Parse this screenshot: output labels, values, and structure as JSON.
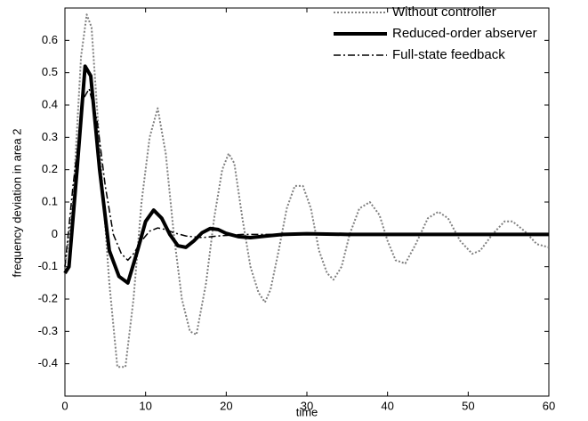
{
  "chart_data": {
    "type": "line",
    "x_label": "time",
    "y_label": "frequency deviation in area 2",
    "xlim": [
      0,
      60
    ],
    "xticks": [
      0,
      10,
      20,
      30,
      40,
      50,
      60
    ],
    "ylim": [
      -0.5,
      0.7
    ],
    "yticks": [
      -0.4,
      -0.3,
      -0.2,
      -0.1,
      0,
      0.1,
      0.2,
      0.3,
      0.4,
      0.5,
      0.6
    ],
    "grid": false,
    "legend": "upper right",
    "series": [
      {
        "name": "Without controller",
        "color": "#808080",
        "linestyle": "dotted",
        "linewidth": 2,
        "x": [
          0,
          1,
          2,
          2.7,
          3.3,
          4.5,
          5.5,
          6.5,
          7.5,
          8.5,
          9.5,
          10.5,
          11.5,
          12.5,
          13.5,
          14.5,
          15.5,
          16.3,
          17.5,
          18.5,
          19.5,
          20.3,
          21,
          22,
          23,
          24,
          24.8,
          25.5,
          26.5,
          27.5,
          28.5,
          29.5,
          30.5,
          31.5,
          32.5,
          33.3,
          34.3,
          35.3,
          36.5,
          37.8,
          39,
          40,
          41,
          42.2,
          43.5,
          45,
          46.3,
          47.5,
          49,
          50.5,
          51.5,
          53,
          54.5,
          55.5,
          57,
          58.5,
          60
        ],
        "values": [
          -0.1,
          0.1,
          0.55,
          0.68,
          0.64,
          0.2,
          -0.15,
          -0.41,
          -0.41,
          -0.2,
          0.1,
          0.3,
          0.39,
          0.25,
          0,
          -0.2,
          -0.3,
          -0.31,
          -0.15,
          0.05,
          0.2,
          0.25,
          0.22,
          0.05,
          -0.1,
          -0.18,
          -0.21,
          -0.17,
          -0.05,
          0.08,
          0.15,
          0.15,
          0.08,
          -0.05,
          -0.12,
          -0.14,
          -0.1,
          0,
          0.08,
          0.1,
          0.06,
          -0.02,
          -0.08,
          -0.09,
          -0.03,
          0.05,
          0.07,
          0.05,
          -0.02,
          -0.06,
          -0.05,
          0,
          0.04,
          0.04,
          0.01,
          -0.03,
          -0.04
        ]
      },
      {
        "name": "Reduced-order abserver",
        "color": "#000000",
        "linestyle": "solid",
        "linewidth": 4,
        "x": [
          0,
          0.5,
          1.5,
          2.5,
          3.2,
          4.3,
          5.5,
          6.7,
          7.8,
          9,
          10,
          11,
          12,
          13,
          14,
          15,
          16,
          17,
          18,
          19,
          20,
          21.5,
          23,
          25,
          27,
          30,
          35,
          40,
          60
        ],
        "values": [
          -0.12,
          -0.1,
          0.2,
          0.52,
          0.49,
          0.2,
          -0.05,
          -0.13,
          -0.15,
          -0.05,
          0.04,
          0.075,
          0.05,
          0,
          -0.035,
          -0.04,
          -0.02,
          0.005,
          0.018,
          0.015,
          0.003,
          -0.007,
          -0.01,
          -0.005,
          0,
          0.002,
          0,
          0,
          0
        ]
      },
      {
        "name": "Full-state feedback",
        "color": "#000000",
        "linestyle": "dashdot",
        "linewidth": 1.5,
        "x": [
          0,
          1,
          2.3,
          3,
          4,
          5,
          6,
          7,
          7.8,
          8.5,
          9.5,
          10.5,
          11.5,
          12.5,
          13.5,
          15,
          17,
          19,
          22,
          60
        ],
        "values": [
          -0.1,
          0.15,
          0.42,
          0.45,
          0.35,
          0.15,
          0,
          -0.06,
          -0.08,
          -0.06,
          -0.02,
          0.01,
          0.02,
          0.015,
          0.005,
          -0.005,
          -0.01,
          -0.005,
          0,
          0
        ]
      }
    ]
  }
}
